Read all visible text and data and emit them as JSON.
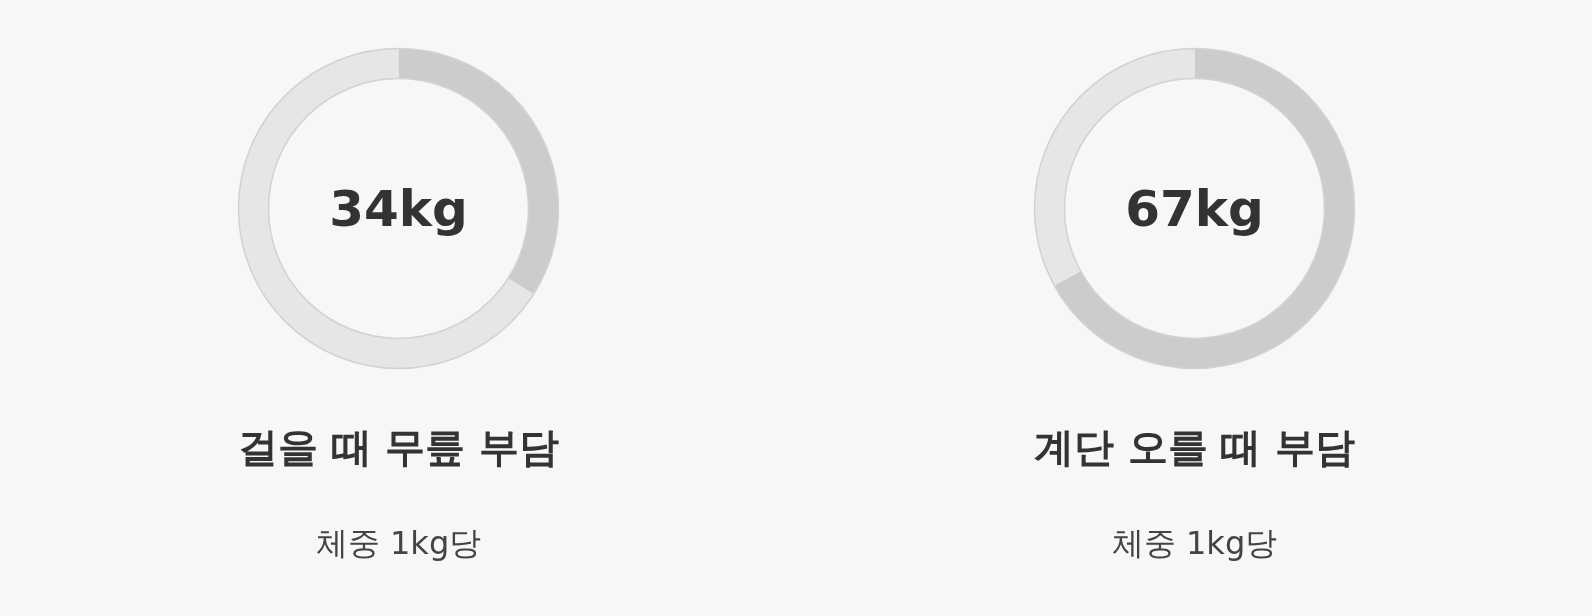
{
  "chart_data": [
    {
      "type": "donut",
      "title": "걸을 때 무릎 부담",
      "subtitle": "체중 1kg당",
      "annotations": [
        "34kg"
      ],
      "categories": [
        null,
        null
      ],
      "values": [
        34,
        66
      ],
      "colors": [
        "#cccccc",
        "#e6e6e6"
      ]
    },
    {
      "type": "donut",
      "title": "계단 오를 때 부담",
      "subtitle": "체중 1kg당",
      "annotations": [
        "67kg"
      ],
      "categories": [
        null,
        null
      ],
      "values": [
        67,
        33
      ],
      "colors": [
        "#cccccc",
        "#e6e6e6"
      ]
    }
  ]
}
